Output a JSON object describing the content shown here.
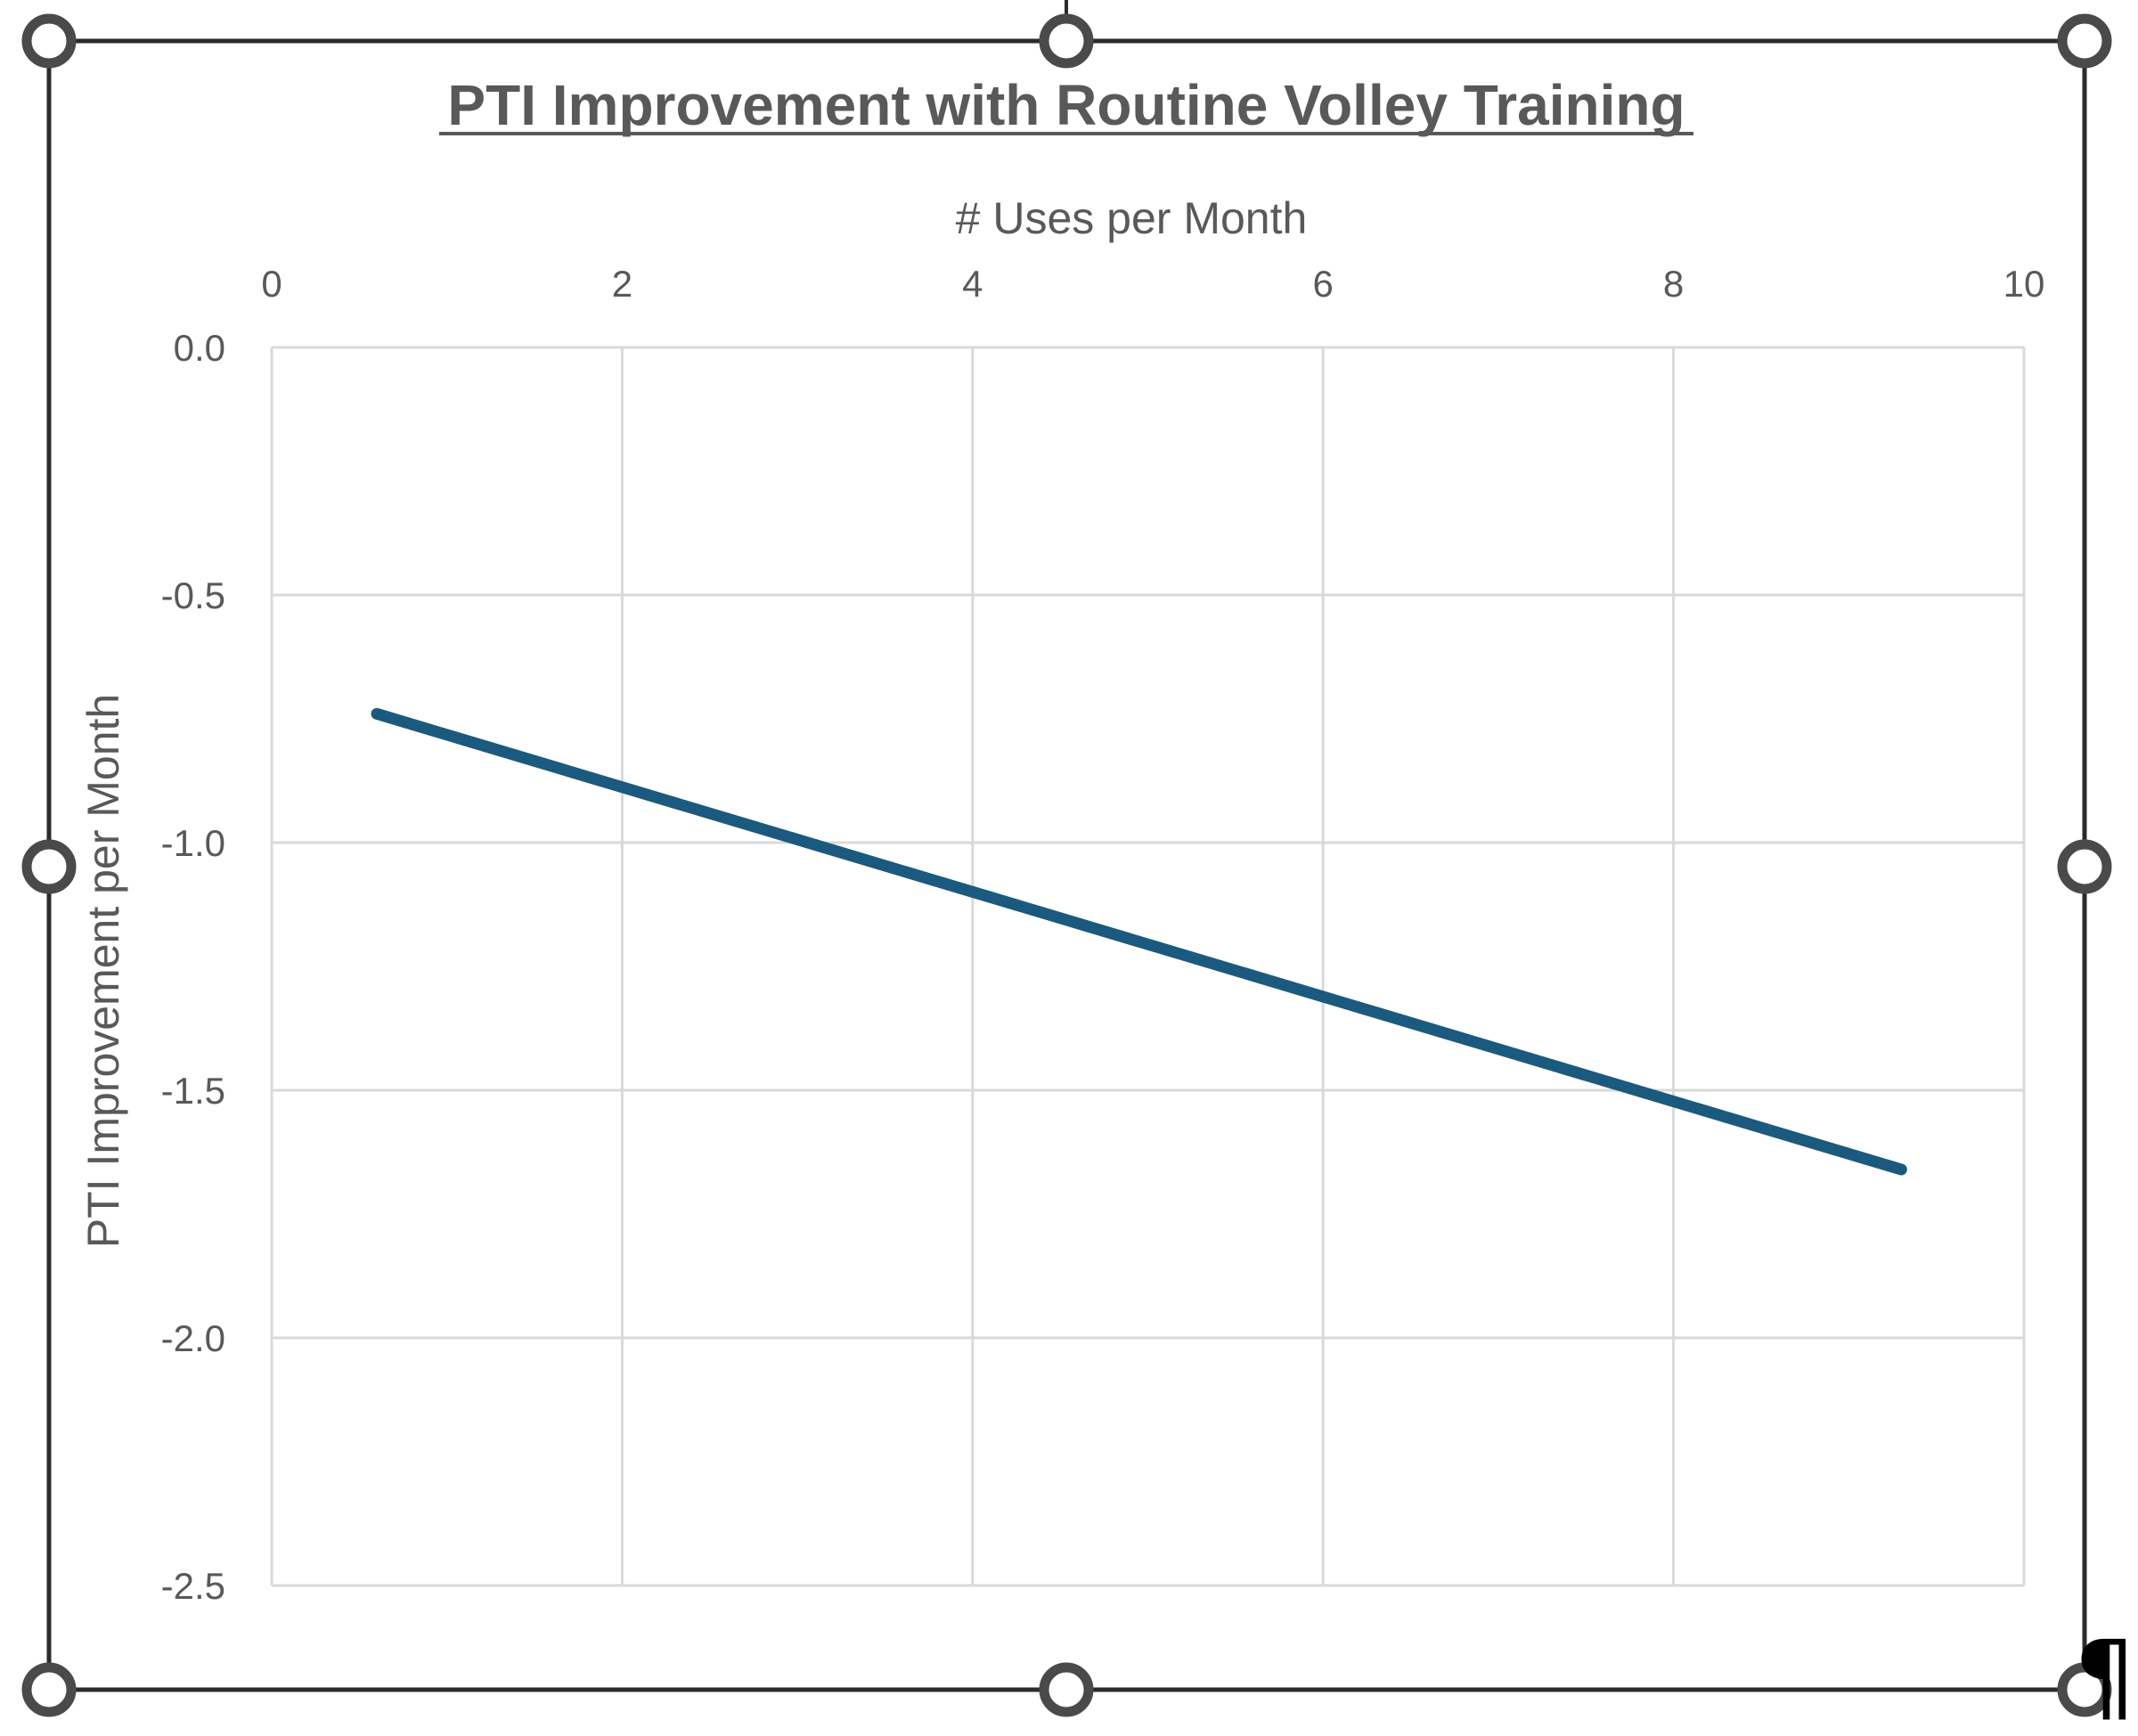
{
  "chart_data": {
    "type": "line",
    "title": "PTI Improvement with Routine Volley Training",
    "xlabel": "# Uses per Month",
    "ylabel": "PTI Improvement per Month",
    "x_axis_position": "top",
    "xlim": [
      0,
      10
    ],
    "ylim": [
      -2.5,
      0.0
    ],
    "x_ticks": [
      "0",
      "2",
      "4",
      "6",
      "8",
      "10"
    ],
    "y_ticks": [
      "0.0",
      "-0.5",
      "-1.0",
      "-1.5",
      "-2.0",
      "-2.5"
    ],
    "grid": true,
    "legend": "none",
    "series": [
      {
        "color": "#1b5a7e",
        "points": [
          {
            "x": 0.6,
            "y": -0.74
          },
          {
            "x": 9.3,
            "y": -1.66
          }
        ]
      }
    ]
  },
  "editor": {
    "selection_handles": "visible",
    "paragraph_mark": "¶"
  }
}
